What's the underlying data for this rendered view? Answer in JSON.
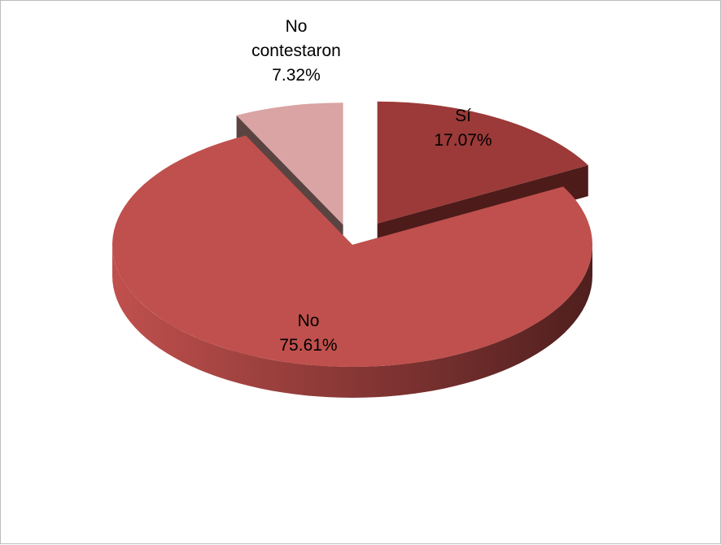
{
  "chart_data": {
    "type": "pie",
    "title": "",
    "style": "3d-exploded",
    "slices": [
      {
        "name": "Sí",
        "label_lines": [
          "Sí"
        ],
        "value": 17.07,
        "value_label": "17.07%",
        "color": "#9b3a38",
        "dark": "#4d1b1a"
      },
      {
        "name": "No",
        "label_lines": [
          "No"
        ],
        "value": 75.61,
        "value_label": "75.61%",
        "color": "#c0504d",
        "dark": "#4f1f1e"
      },
      {
        "name": "No contestaron",
        "label_lines": [
          "No",
          "contestaron"
        ],
        "value": 7.32,
        "value_label": "7.32%",
        "color": "#d9a4a3",
        "dark": "#5a4442"
      }
    ]
  }
}
